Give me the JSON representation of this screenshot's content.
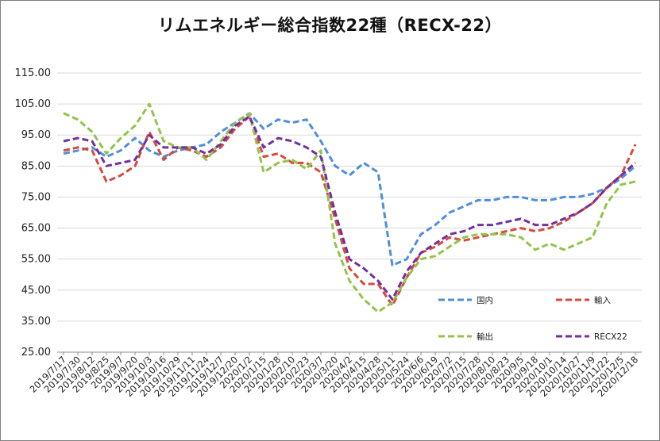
{
  "chart_data": {
    "type": "line",
    "title": "リムエネルギー総合指数22種（RECX-22）",
    "ylim": [
      25,
      115
    ],
    "yticks": [
      "115.00",
      "105.00",
      "95.00",
      "85.00",
      "75.00",
      "65.00",
      "55.00",
      "45.00",
      "35.00",
      "25.00"
    ],
    "categories": [
      "2019/7/17",
      "2019/7/30",
      "2019/8/12",
      "2019/8/25",
      "2019/9/7",
      "2019/9/20",
      "2019/10/3",
      "2019/10/16",
      "2019/10/29",
      "2019/11/11",
      "2019/11/24",
      "2019/12/7",
      "2019/12/20",
      "2020/1/2",
      "2020/1/15",
      "2020/1/28",
      "2020/2/10",
      "2020/2/23",
      "2020/3/7",
      "2020/3/20",
      "2020/4/2",
      "2020/4/15",
      "2020/4/28",
      "2020/5/11",
      "2020/5/24",
      "2020/6/6",
      "2020/6/19",
      "2020/7/2",
      "2020/7/15",
      "2020/7/28",
      "2020/8/10",
      "2020/8/23",
      "2020/9/5",
      "2020/9/18",
      "2020/10/1",
      "2020/10/14",
      "2020/10/27",
      "2020/11/9",
      "2020/11/22",
      "2020/12/5",
      "2020/12/18"
    ],
    "grid": true,
    "legend_position": "bottom-right",
    "series": [
      {
        "name": "国内",
        "color": "#4f8fd8",
        "values": [
          89,
          90,
          91,
          88,
          90,
          94,
          90,
          88,
          90,
          91,
          92,
          96,
          99,
          102,
          97,
          100,
          99,
          100,
          93,
          85,
          82,
          86,
          83,
          53,
          55,
          63,
          66,
          70,
          72,
          74,
          74,
          75,
          75,
          74,
          74,
          75,
          75,
          76,
          78,
          81,
          85
        ]
      },
      {
        "name": "輸入",
        "color": "#d64a3c",
        "values": [
          90,
          91,
          90,
          80,
          82,
          85,
          96,
          87,
          91,
          90,
          88,
          91,
          97,
          101,
          88,
          89,
          86,
          86,
          83,
          68,
          52,
          47,
          47,
          40,
          49,
          57,
          59,
          62,
          61,
          62,
          63,
          64,
          65,
          64,
          65,
          67,
          70,
          73,
          78,
          82,
          92
        ]
      },
      {
        "name": "輸出",
        "color": "#92c44a",
        "values": [
          102,
          100,
          96,
          89,
          94,
          98,
          105,
          93,
          91,
          91,
          87,
          93,
          99,
          102,
          83,
          86,
          87,
          84,
          90,
          60,
          48,
          42,
          38,
          41,
          49,
          55,
          56,
          59,
          62,
          63,
          63,
          63,
          62,
          58,
          60,
          58,
          60,
          62,
          73,
          79,
          80
        ]
      },
      {
        "name": "RECX22",
        "color": "#7030a0",
        "values": [
          93,
          94,
          93,
          85,
          86,
          87,
          95,
          91,
          91,
          91,
          89,
          92,
          98,
          101,
          91,
          94,
          93,
          91,
          88,
          70,
          55,
          52,
          48,
          42,
          51,
          57,
          60,
          63,
          64,
          66,
          66,
          67,
          68,
          66,
          66,
          68,
          70,
          73,
          78,
          82,
          86
        ]
      }
    ]
  }
}
